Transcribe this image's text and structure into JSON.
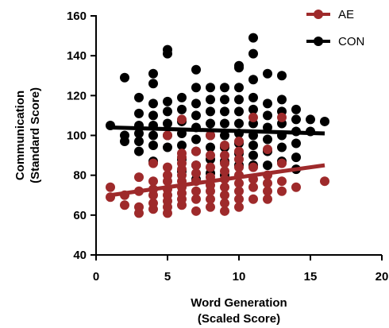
{
  "chart_data": {
    "type": "scatter",
    "xlabel": [
      "Word Generation",
      "(Scaled Score)"
    ],
    "ylabel": [
      "Communication",
      "(Standard Score)"
    ],
    "xlim": [
      0,
      20
    ],
    "ylim": [
      40,
      160
    ],
    "xticks": [
      0,
      5,
      10,
      15,
      20
    ],
    "yticks": [
      40,
      60,
      80,
      100,
      120,
      140,
      160
    ],
    "grid": false,
    "legend_position": "top-right",
    "series": [
      {
        "name": "AE",
        "color": "#9e2a2b",
        "fit": {
          "x": [
            1,
            16
          ],
          "y": [
            70,
            85
          ]
        },
        "points": [
          [
            1,
            74
          ],
          [
            1,
            69
          ],
          [
            2,
            65
          ],
          [
            2,
            70
          ],
          [
            3,
            61
          ],
          [
            3,
            64
          ],
          [
            3,
            72
          ],
          [
            3,
            79
          ],
          [
            4,
            63
          ],
          [
            4,
            66
          ],
          [
            4,
            70
          ],
          [
            4,
            73
          ],
          [
            4,
            77
          ],
          [
            4,
            86
          ],
          [
            5,
            61
          ],
          [
            5,
            64
          ],
          [
            5,
            67
          ],
          [
            5,
            70
          ],
          [
            5,
            73
          ],
          [
            5,
            77
          ],
          [
            5,
            80
          ],
          [
            5,
            84
          ],
          [
            5,
            100
          ],
          [
            6,
            65
          ],
          [
            6,
            68
          ],
          [
            6,
            71
          ],
          [
            6,
            74
          ],
          [
            6,
            77
          ],
          [
            6,
            80
          ],
          [
            6,
            83
          ],
          [
            6,
            86
          ],
          [
            6,
            89
          ],
          [
            6,
            91
          ],
          [
            6,
            108
          ],
          [
            7,
            62
          ],
          [
            7,
            68
          ],
          [
            7,
            72
          ],
          [
            7,
            77
          ],
          [
            7,
            81
          ],
          [
            7,
            85
          ],
          [
            7,
            92
          ],
          [
            8,
            64
          ],
          [
            8,
            68
          ],
          [
            8,
            72
          ],
          [
            8,
            75
          ],
          [
            8,
            79
          ],
          [
            8,
            84
          ],
          [
            8,
            90
          ],
          [
            8,
            100
          ],
          [
            9,
            62
          ],
          [
            9,
            66
          ],
          [
            9,
            70
          ],
          [
            9,
            74
          ],
          [
            9,
            78
          ],
          [
            9,
            82
          ],
          [
            9,
            86
          ],
          [
            9,
            90
          ],
          [
            9,
            95
          ],
          [
            10,
            64
          ],
          [
            10,
            68
          ],
          [
            10,
            72
          ],
          [
            10,
            76
          ],
          [
            10,
            80
          ],
          [
            10,
            84
          ],
          [
            10,
            88
          ],
          [
            10,
            92
          ],
          [
            10,
            97
          ],
          [
            11,
            68
          ],
          [
            11,
            74
          ],
          [
            11,
            78
          ],
          [
            11,
            84
          ],
          [
            11,
            109
          ],
          [
            12,
            68
          ],
          [
            12,
            72
          ],
          [
            12,
            76
          ],
          [
            12,
            80
          ],
          [
            12,
            93
          ],
          [
            13,
            72
          ],
          [
            13,
            77
          ],
          [
            13,
            86
          ],
          [
            13,
            109
          ],
          [
            14,
            74
          ],
          [
            16,
            77
          ]
        ]
      },
      {
        "name": "CON",
        "color": "#000000",
        "fit": {
          "x": [
            1,
            16
          ],
          "y": [
            104,
            101
          ]
        },
        "points": [
          [
            1,
            105
          ],
          [
            2,
            100
          ],
          [
            2,
            97
          ],
          [
            2,
            129
          ],
          [
            3,
            92
          ],
          [
            3,
            97
          ],
          [
            3,
            101
          ],
          [
            3,
            105
          ],
          [
            3,
            111
          ],
          [
            3,
            119
          ],
          [
            4,
            87
          ],
          [
            4,
            95
          ],
          [
            4,
            100
          ],
          [
            4,
            105
          ],
          [
            4,
            110
          ],
          [
            4,
            116
          ],
          [
            4,
            126
          ],
          [
            4,
            131
          ],
          [
            5,
            94
          ],
          [
            5,
            100
          ],
          [
            5,
            106
          ],
          [
            5,
            112
          ],
          [
            5,
            117
          ],
          [
            5,
            141
          ],
          [
            5,
            143
          ],
          [
            6,
            82
          ],
          [
            6,
            88
          ],
          [
            6,
            95
          ],
          [
            6,
            101
          ],
          [
            6,
            107
          ],
          [
            6,
            113
          ],
          [
            6,
            119
          ],
          [
            7,
            78
          ],
          [
            7,
            85
          ],
          [
            7,
            92
          ],
          [
            7,
            98
          ],
          [
            7,
            104
          ],
          [
            7,
            110
          ],
          [
            7,
            116
          ],
          [
            7,
            124
          ],
          [
            7,
            133
          ],
          [
            8,
            81
          ],
          [
            8,
            88
          ],
          [
            8,
            94
          ],
          [
            8,
            100
          ],
          [
            8,
            106
          ],
          [
            8,
            112
          ],
          [
            8,
            118
          ],
          [
            8,
            124
          ],
          [
            9,
            80
          ],
          [
            9,
            87
          ],
          [
            9,
            94
          ],
          [
            9,
            100
          ],
          [
            9,
            106
          ],
          [
            9,
            112
          ],
          [
            9,
            118
          ],
          [
            9,
            124
          ],
          [
            10,
            85
          ],
          [
            10,
            91
          ],
          [
            10,
            96
          ],
          [
            10,
            101
          ],
          [
            10,
            106
          ],
          [
            10,
            112
          ],
          [
            10,
            118
          ],
          [
            10,
            124
          ],
          [
            10,
            134
          ],
          [
            10,
            135
          ],
          [
            11,
            85
          ],
          [
            11,
            90
          ],
          [
            11,
            95
          ],
          [
            11,
            100
          ],
          [
            11,
            106
          ],
          [
            11,
            113
          ],
          [
            11,
            119
          ],
          [
            11,
            128
          ],
          [
            11,
            141
          ],
          [
            11,
            149
          ],
          [
            12,
            85
          ],
          [
            12,
            92
          ],
          [
            12,
            98
          ],
          [
            12,
            104
          ],
          [
            12,
            110
          ],
          [
            12,
            116
          ],
          [
            12,
            131
          ],
          [
            13,
            87
          ],
          [
            13,
            94
          ],
          [
            13,
            100
          ],
          [
            13,
            106
          ],
          [
            13,
            112
          ],
          [
            13,
            118
          ],
          [
            13,
            130
          ],
          [
            14,
            83
          ],
          [
            14,
            89
          ],
          [
            14,
            96
          ],
          [
            14,
            102
          ],
          [
            14,
            108
          ],
          [
            14,
            113
          ],
          [
            15,
            102
          ],
          [
            15,
            108
          ],
          [
            16,
            107
          ]
        ]
      }
    ]
  }
}
